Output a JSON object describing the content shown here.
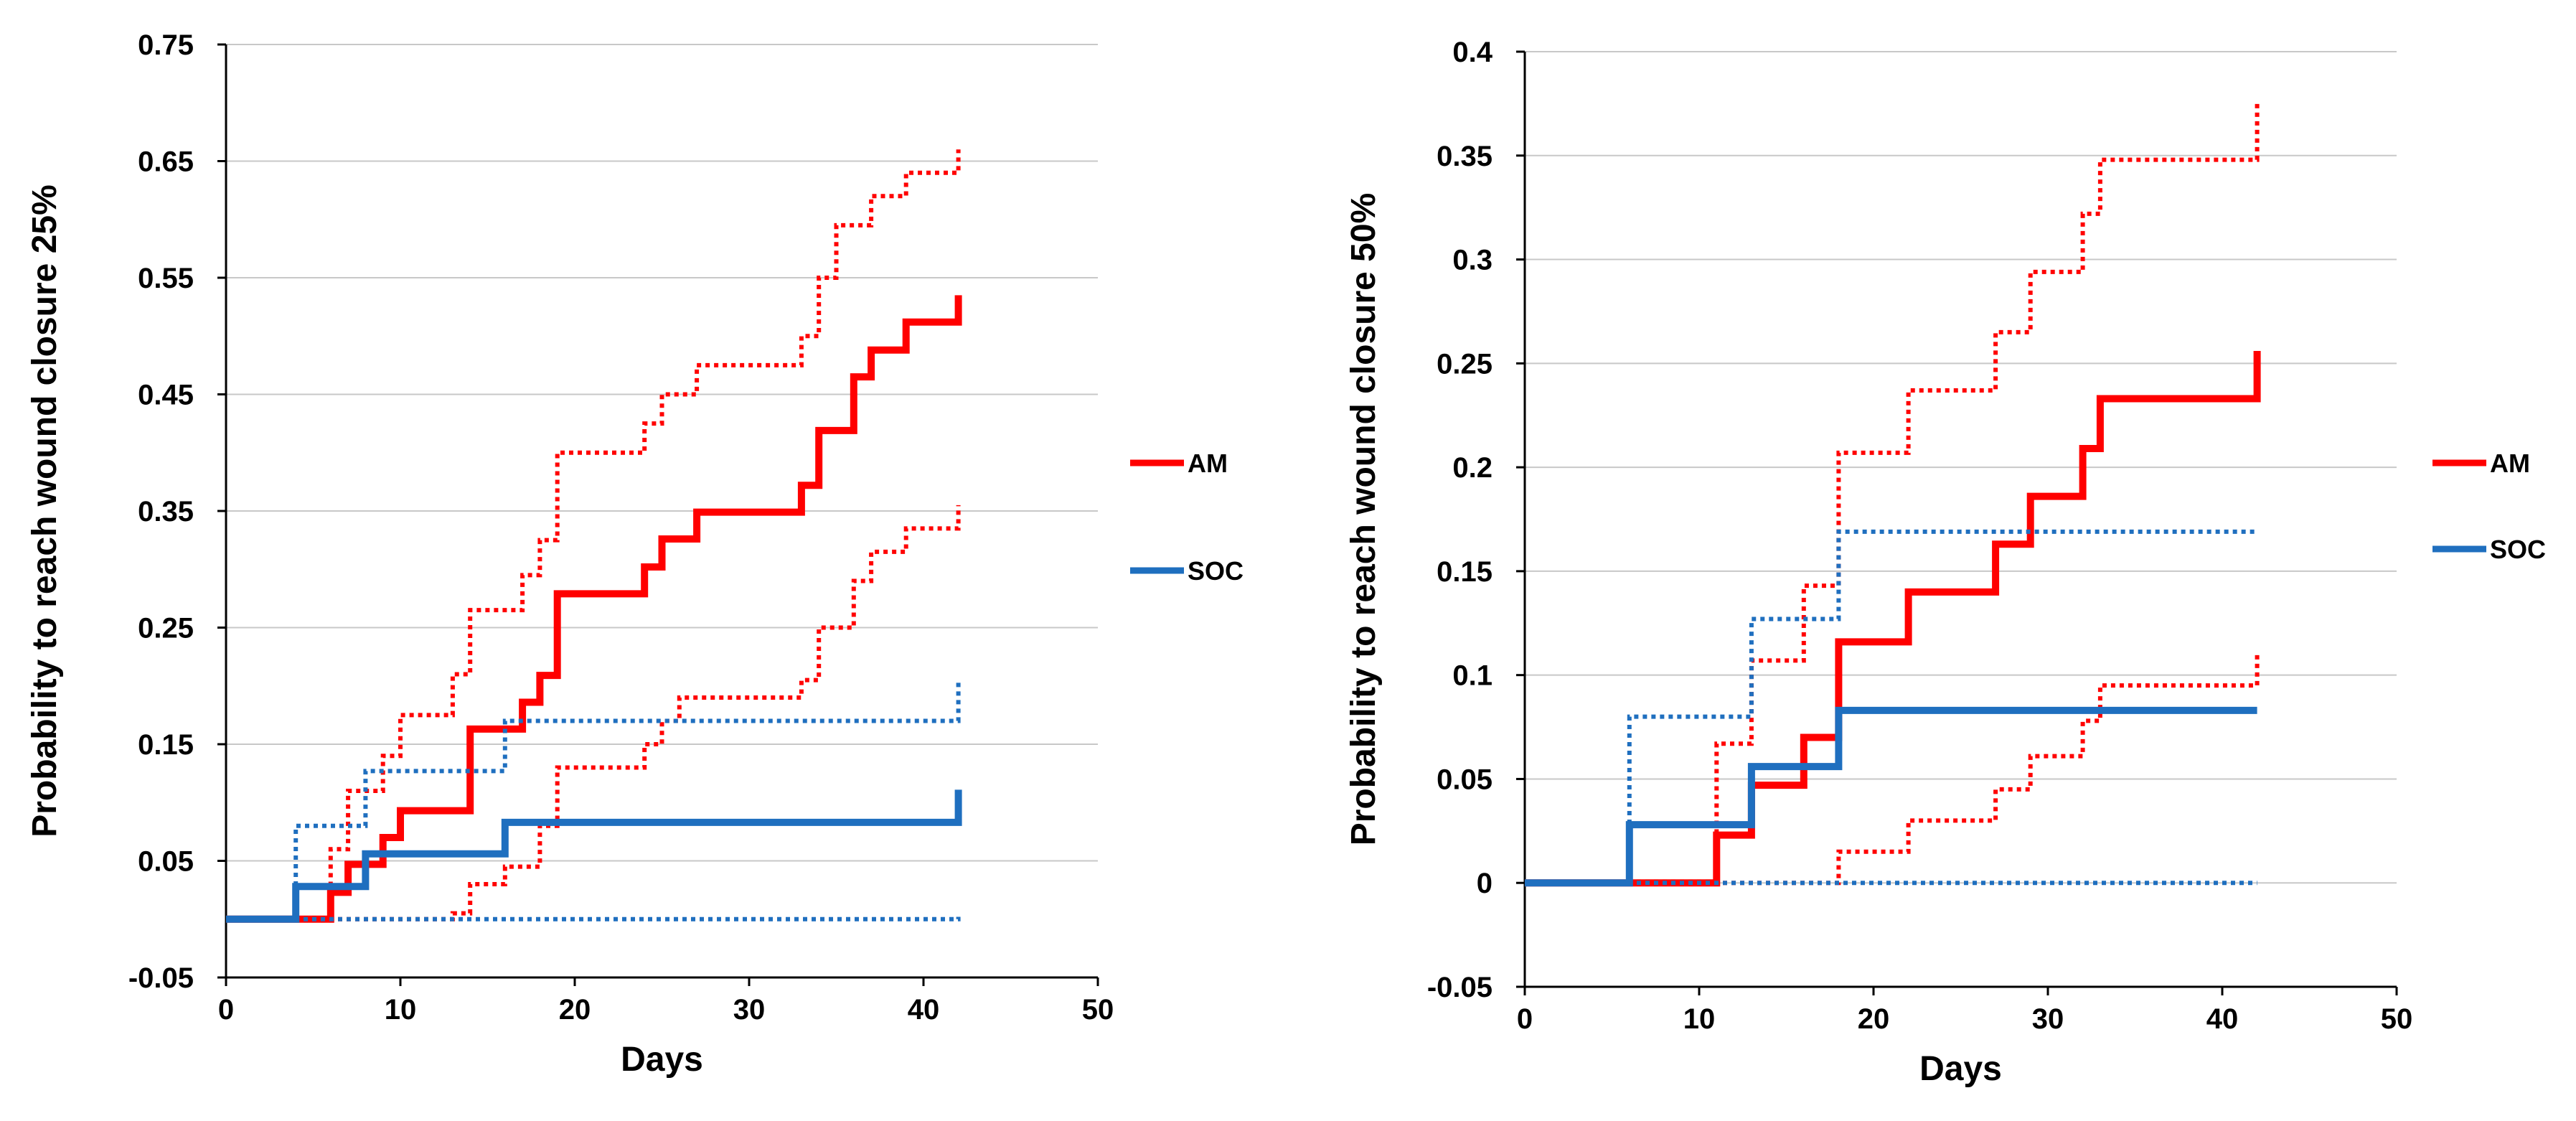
{
  "chart_data": [
    {
      "type": "line",
      "step": true,
      "xlabel": "Days",
      "ylabel": "Probability to reach wound closure 25%",
      "xlim": [
        0,
        50
      ],
      "ylim": [
        -0.05,
        0.75
      ],
      "xticks": [
        "0",
        "10",
        "20",
        "30",
        "40",
        "50"
      ],
      "yticks": [
        "-0.05",
        "0.05",
        "0.15",
        "0.25",
        "0.35",
        "0.45",
        "0.55",
        "0.65",
        "0.75"
      ],
      "grid": "horizontal",
      "legend_position": "right",
      "legend": [
        {
          "label": "AM",
          "color": "#ff0000"
        },
        {
          "label": "SOC",
          "color": "#1f6fbf"
        }
      ],
      "series": [
        {
          "name": "AM",
          "color": "#ff0000",
          "style": "solid",
          "x": [
            0,
            6,
            7,
            8,
            9,
            10,
            14,
            17,
            18,
            19,
            24,
            25,
            27,
            33,
            34,
            36,
            37,
            39,
            42
          ],
          "y": [
            0,
            0.023,
            0.047,
            0.047,
            0.07,
            0.093,
            0.163,
            0.186,
            0.209,
            0.279,
            0.302,
            0.326,
            0.349,
            0.372,
            0.419,
            0.465,
            0.488,
            0.512,
            0.535
          ]
        },
        {
          "color": "#ff0000",
          "style": "dotted",
          "x": [
            0,
            6,
            7,
            8,
            9,
            10,
            13,
            14,
            17,
            18,
            19,
            24,
            25,
            27,
            33,
            34,
            35,
            36,
            37,
            39,
            42
          ],
          "y": [
            0,
            0.06,
            0.11,
            0.11,
            0.14,
            0.175,
            0.21,
            0.265,
            0.295,
            0.325,
            0.4,
            0.425,
            0.45,
            0.475,
            0.5,
            0.55,
            0.595,
            0.595,
            0.62,
            0.64,
            0.66
          ]
        },
        {
          "color": "#ff0000",
          "style": "dotted",
          "x": [
            0,
            13,
            14,
            16,
            18,
            19,
            24,
            25,
            26,
            33,
            34,
            35,
            36,
            37,
            39,
            42
          ],
          "y": [
            0,
            0.005,
            0.03,
            0.045,
            0.08,
            0.13,
            0.15,
            0.17,
            0.19,
            0.205,
            0.25,
            0.25,
            0.29,
            0.315,
            0.335,
            0.355
          ]
        },
        {
          "name": "SOC",
          "color": "#1f6fbf",
          "style": "solid",
          "x": [
            0,
            4,
            8,
            16,
            42
          ],
          "y": [
            0,
            0.028,
            0.056,
            0.083,
            0.111
          ]
        },
        {
          "color": "#1f6fbf",
          "style": "dotted",
          "x": [
            0,
            4,
            8,
            16,
            42
          ],
          "y": [
            0,
            0.08,
            0.127,
            0.17,
            0.205
          ]
        },
        {
          "color": "#1f6fbf",
          "style": "dotted",
          "x": [
            0,
            42
          ],
          "y": [
            0,
            0.002
          ]
        }
      ]
    },
    {
      "type": "line",
      "step": true,
      "xlabel": "Days",
      "ylabel": "Probability to reach wound closure 50%",
      "xlim": [
        0,
        50
      ],
      "ylim": [
        -0.05,
        0.4
      ],
      "xticks": [
        "0",
        "10",
        "20",
        "30",
        "40",
        "50"
      ],
      "yticks": [
        "-0.05",
        "0",
        "0.05",
        "0.1",
        "0.15",
        "0.2",
        "0.25",
        "0.3",
        "0.35",
        "0.4"
      ],
      "grid": "horizontal",
      "legend_position": "right",
      "legend": [
        {
          "label": "AM",
          "color": "#ff0000"
        },
        {
          "label": "SOC",
          "color": "#1f6fbf"
        }
      ],
      "series": [
        {
          "name": "AM",
          "color": "#ff0000",
          "style": "solid",
          "x": [
            0,
            11,
            13,
            16,
            18,
            22,
            27,
            29,
            32,
            33,
            42
          ],
          "y": [
            0,
            0.023,
            0.047,
            0.07,
            0.116,
            0.14,
            0.163,
            0.186,
            0.209,
            0.233,
            0.256
          ]
        },
        {
          "color": "#ff0000",
          "style": "dotted",
          "x": [
            0,
            11,
            13,
            16,
            18,
            22,
            27,
            29,
            32,
            33,
            42
          ],
          "y": [
            0,
            0.067,
            0.107,
            0.143,
            0.207,
            0.237,
            0.265,
            0.294,
            0.322,
            0.348,
            0.375
          ]
        },
        {
          "color": "#ff0000",
          "style": "dotted",
          "x": [
            0,
            18,
            22,
            27,
            29,
            32,
            33,
            42
          ],
          "y": [
            0,
            0.015,
            0.03,
            0.045,
            0.061,
            0.078,
            0.095,
            0.11
          ]
        },
        {
          "name": "SOC",
          "color": "#1f6fbf",
          "style": "solid",
          "x": [
            0,
            6,
            13,
            18,
            42
          ],
          "y": [
            0,
            0.028,
            0.056,
            0.083,
            0.083
          ]
        },
        {
          "color": "#1f6fbf",
          "style": "dotted",
          "x": [
            0,
            6,
            13,
            18,
            42
          ],
          "y": [
            0,
            0.08,
            0.127,
            0.169,
            0.169
          ]
        },
        {
          "color": "#1f6fbf",
          "style": "dotted",
          "x": [
            0,
            42
          ],
          "y": [
            0,
            0
          ]
        }
      ]
    }
  ]
}
